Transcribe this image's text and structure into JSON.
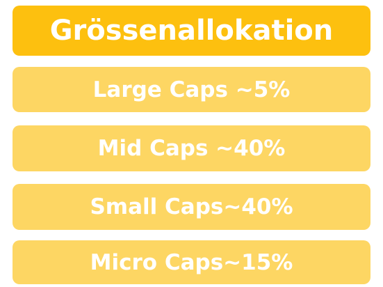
{
  "header": {
    "title": "Grössenallokation"
  },
  "items": [
    {
      "label": "Large Caps ~5%"
    },
    {
      "label": "Mid Caps ~40%"
    },
    {
      "label": "Small Caps~40%"
    },
    {
      "label": "Micro Caps~15%"
    }
  ]
}
